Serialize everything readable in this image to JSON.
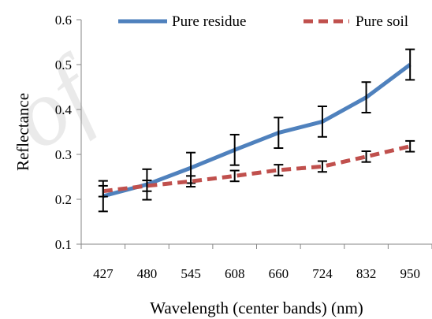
{
  "chart_data": {
    "type": "line",
    "xlabel": "Wavelength (center bands) (nm)",
    "ylabel": "Reflectance",
    "categories": [
      "427",
      "480",
      "545",
      "608",
      "660",
      "724",
      "832",
      "950"
    ],
    "ylim": [
      0.1,
      0.6
    ],
    "yticks": [
      "0.1",
      "0.2",
      "0.3",
      "0.4",
      "0.5",
      "0.6"
    ],
    "grid": false,
    "legend_position": "top",
    "series": [
      {
        "name": "Pure residue",
        "color": "#4F81BD",
        "line_style": "solid",
        "values": [
          0.207,
          0.233,
          0.27,
          0.31,
          0.348,
          0.373,
          0.427,
          0.5
        ],
        "error": [
          0.034,
          0.034,
          0.034,
          0.034,
          0.034,
          0.034,
          0.034,
          0.034
        ]
      },
      {
        "name": "Pure soil",
        "color": "#C0504D",
        "line_style": "dashed",
        "values": [
          0.218,
          0.23,
          0.24,
          0.252,
          0.265,
          0.273,
          0.295,
          0.318
        ],
        "error": [
          0.012,
          0.012,
          0.012,
          0.012,
          0.012,
          0.012,
          0.012,
          0.012
        ]
      }
    ]
  }
}
